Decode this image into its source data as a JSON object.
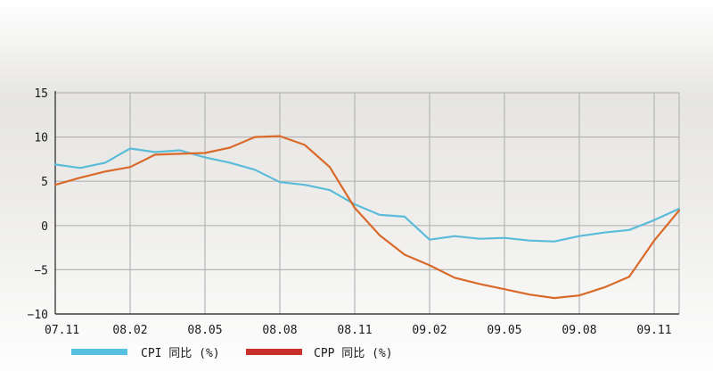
{
  "chart_data": {
    "type": "line",
    "x": [
      "07.11",
      "07.12",
      "08.01",
      "08.02",
      "08.03",
      "08.04",
      "08.05",
      "08.06",
      "08.07",
      "08.08",
      "08.09",
      "08.10",
      "08.11",
      "08.12",
      "09.01",
      "09.02",
      "09.03",
      "09.04",
      "09.05",
      "09.06",
      "09.07",
      "09.08",
      "09.09",
      "09.10",
      "09.11",
      "09.12"
    ],
    "x_tick_labels": [
      "07.11",
      "08.02",
      "08.05",
      "08.08",
      "08.11",
      "09.02",
      "09.05",
      "09.08",
      "09.11"
    ],
    "y_ticks": [
      "15",
      "10",
      "5",
      "0",
      "−5",
      "−10"
    ],
    "ylim": [
      -10,
      15
    ],
    "grid": true,
    "legend_position": "bottom",
    "series": [
      {
        "name": "CPI 同比 (%)",
        "color": "#5bbcd9",
        "legend_color": "#56c0e0",
        "values": [
          6.9,
          6.5,
          7.1,
          8.7,
          8.3,
          8.5,
          7.7,
          7.1,
          6.3,
          4.9,
          4.6,
          4.0,
          2.4,
          1.2,
          1.0,
          -1.6,
          -1.2,
          -1.5,
          -1.4,
          -1.7,
          -1.8,
          -1.2,
          -0.8,
          -0.5,
          0.6,
          1.9
        ]
      },
      {
        "name": "CPP 同比 (%)",
        "color": "#d96a2a",
        "legend_color": "#c9322b",
        "values": [
          4.6,
          5.4,
          6.1,
          6.6,
          8.0,
          8.1,
          8.2,
          8.8,
          10.0,
          10.1,
          9.1,
          6.6,
          2.0,
          -1.1,
          -3.3,
          -4.5,
          -5.9,
          -6.6,
          -7.2,
          -7.8,
          -8.2,
          -7.9,
          -7.0,
          -5.8,
          -1.7,
          1.7
        ]
      }
    ]
  }
}
